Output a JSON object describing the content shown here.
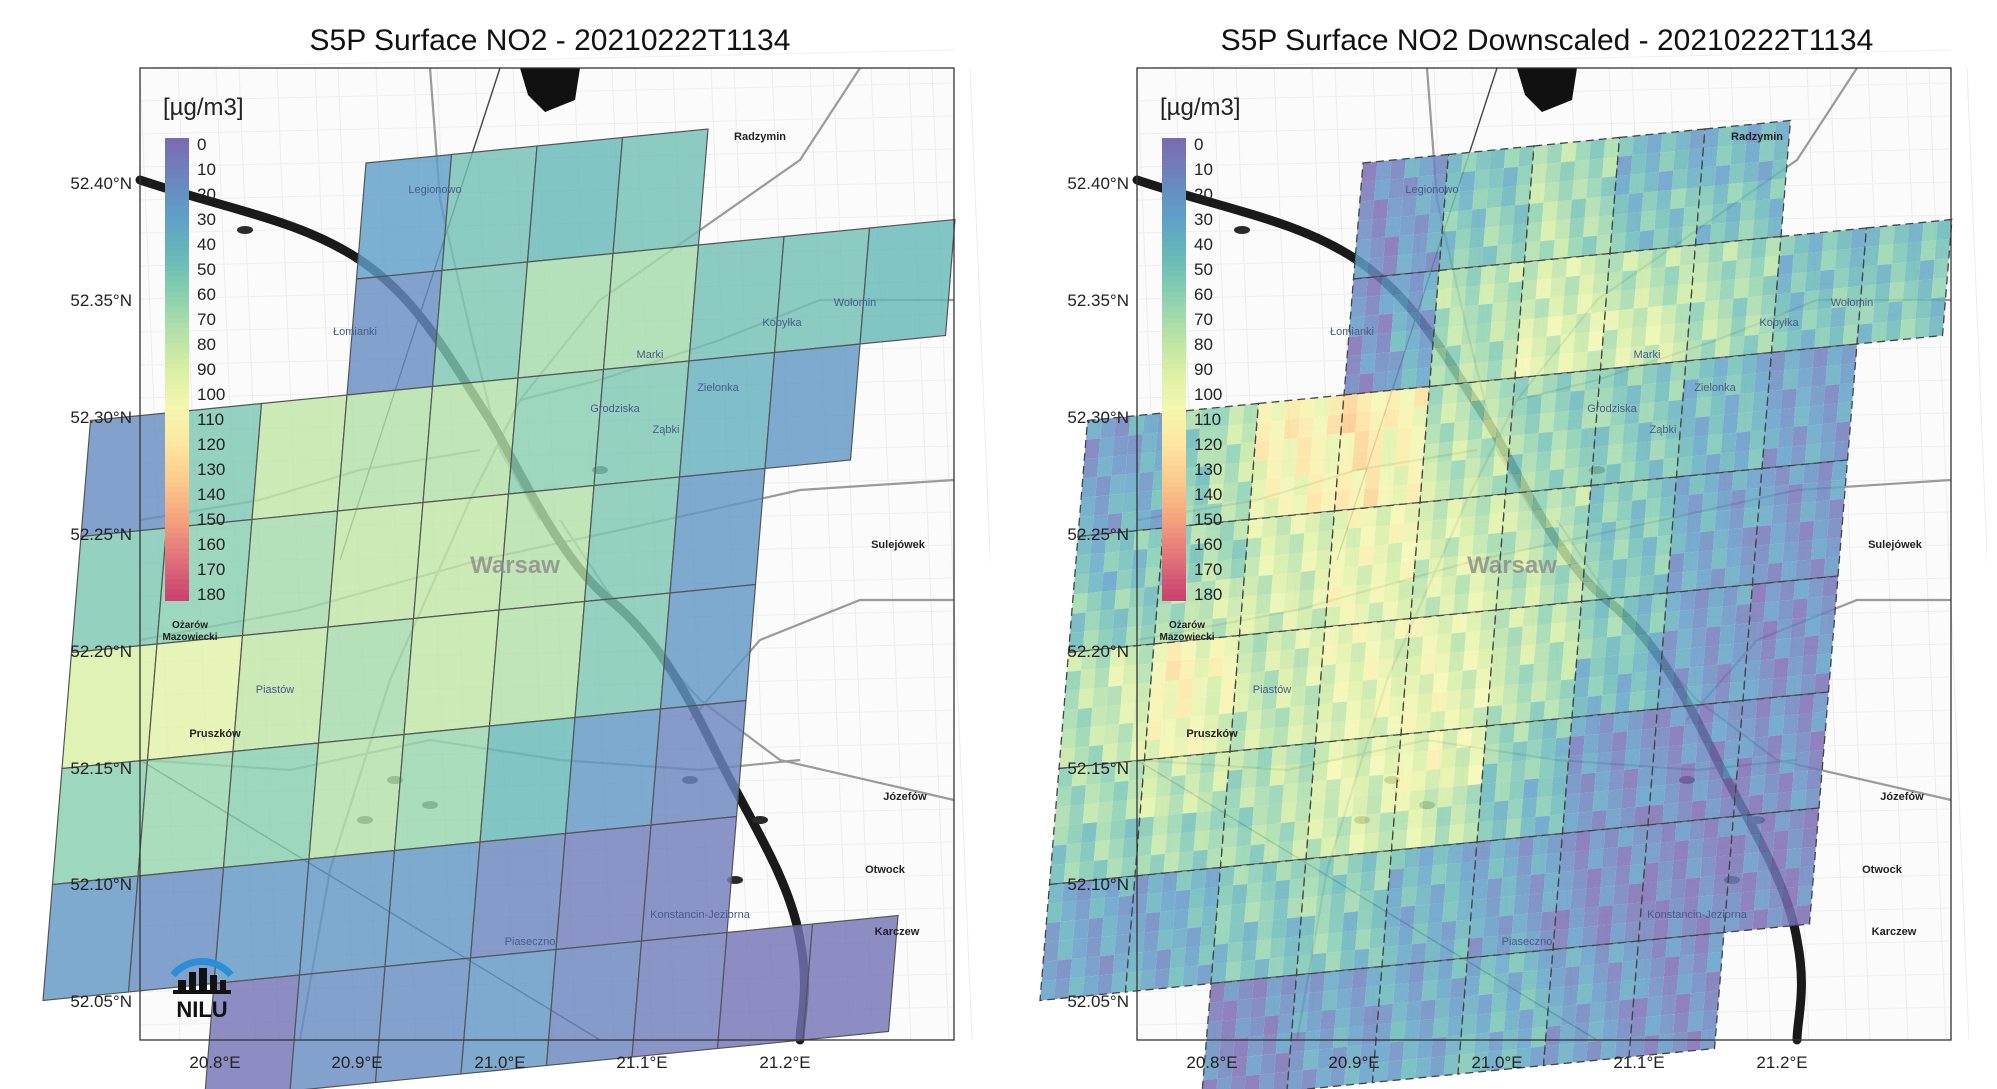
{
  "panels": [
    {
      "title": "S5P Surface NO2 - 20210222T1134",
      "grid_style": "solid",
      "downscaled": false,
      "show_logo": true
    },
    {
      "title": "S5P Surface NO2 Downscaled - 20210222T1134",
      "grid_style": "dashed",
      "downscaled": true,
      "show_logo": false
    }
  ],
  "axes": {
    "y_ticks": [
      "52.40°N",
      "52.35°N",
      "52.30°N",
      "52.25°N",
      "52.20°N",
      "52.15°N",
      "52.10°N",
      "52.05°N"
    ],
    "x_ticks": [
      "20.8°E",
      "20.9°E",
      "21.0°E",
      "21.1°E",
      "21.2°E"
    ]
  },
  "colorbar": {
    "unit": "[µg/m3]",
    "ticks": [
      "0",
      "10",
      "20",
      "30",
      "40",
      "50",
      "60",
      "70",
      "80",
      "90",
      "100",
      "110",
      "120",
      "130",
      "140",
      "150",
      "160",
      "170",
      "180"
    ],
    "colors": [
      "#7b6bb1",
      "#6a86bf",
      "#5f9fc8",
      "#67b8b8",
      "#88cfb0",
      "#b2e0a8",
      "#d9efa3",
      "#f4f7b0",
      "#fde6a0",
      "#fbc88a",
      "#f4a07c",
      "#e0707a",
      "#c9446f"
    ]
  },
  "places": [
    {
      "name": "Radzymin",
      "bold": true
    },
    {
      "name": "Legionowo",
      "bold": false
    },
    {
      "name": "Wołomin",
      "bold": false
    },
    {
      "name": "Łomianki",
      "bold": false
    },
    {
      "name": "Kobyłka",
      "bold": false
    },
    {
      "name": "Marki",
      "bold": false
    },
    {
      "name": "Zielonka",
      "bold": false
    },
    {
      "name": "Ząbki",
      "bold": false
    },
    {
      "name": "Sulejówek",
      "bold": true
    },
    {
      "name": "Warsaw",
      "bold": true
    },
    {
      "name": "Ożarów Mazowiecki",
      "bold": true
    },
    {
      "name": "Piastów",
      "bold": false
    },
    {
      "name": "Pruszków",
      "bold": true
    },
    {
      "name": "Józefów",
      "bold": true
    },
    {
      "name": "Otwock",
      "bold": true
    },
    {
      "name": "Konstancin-Jeziorna",
      "bold": false
    },
    {
      "name": "Piaseczno",
      "bold": false
    },
    {
      "name": "Karczew",
      "bold": true
    },
    {
      "name": "Grodziska",
      "bold": false
    }
  ],
  "logo": {
    "text": "NILU"
  },
  "original_grid": {
    "rows": [
      [
        30,
        50,
        45,
        50
      ],
      [
        20,
        55,
        70,
        70,
        50,
        50,
        45
      ],
      [
        20,
        55,
        80,
        75,
        75,
        60,
        55,
        40,
        25
      ],
      [
        55,
        60,
        70,
        80,
        80,
        75,
        55,
        25
      ],
      [
        90,
        95,
        80,
        70,
        80,
        75,
        55,
        25
      ],
      [
        60,
        65,
        60,
        75,
        65,
        45,
        25,
        15
      ],
      [
        25,
        20,
        25,
        25,
        25,
        15,
        10,
        10
      ],
      [
        5,
        20,
        20,
        25,
        15,
        10,
        5,
        5
      ]
    ]
  },
  "downscaled_rows": [
    [
      15,
      45,
      70,
      40,
      40,
      50,
      55,
      40
    ],
    [
      15,
      70,
      85,
      75,
      70,
      45,
      50,
      35,
      20
    ],
    [
      20,
      60,
      110,
      120,
      75,
      60,
      55,
      45,
      25
    ],
    [
      45,
      60,
      85,
      100,
      85,
      75,
      55,
      30,
      20
    ],
    [
      75,
      110,
      80,
      95,
      95,
      80,
      55,
      25,
      15
    ],
    [
      65,
      80,
      70,
      90,
      100,
      60,
      20,
      15,
      15
    ],
    [
      30,
      30,
      55,
      60,
      40,
      30,
      15,
      10,
      10
    ],
    [
      10,
      25,
      30,
      40,
      25,
      15,
      5,
      5,
      5
    ]
  ]
}
